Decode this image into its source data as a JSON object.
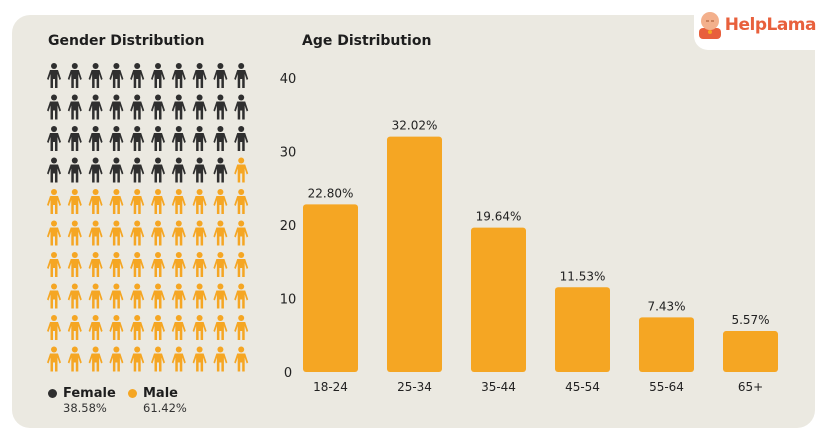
{
  "brand": {
    "name": "HelpLama"
  },
  "gender": {
    "title": "Gender Distribution",
    "total_icons": 100,
    "female_icons": 39,
    "legend": [
      {
        "label": "Female",
        "pct": "38.58%",
        "color": "#2f2f2f"
      },
      {
        "label": "Male",
        "pct": "61.42%",
        "color": "#f5a623"
      }
    ]
  },
  "chart_data": {
    "type": "bar",
    "title": "Age Distribution",
    "categories": [
      "18-24",
      "25-34",
      "35-44",
      "45-54",
      "55-64",
      "65+"
    ],
    "values": [
      22.8,
      32.02,
      19.64,
      11.53,
      7.43,
      5.57
    ],
    "data_labels": [
      "22.80%",
      "32.02%",
      "19.64%",
      "11.53%",
      "7.43%",
      "5.57%"
    ],
    "yticks": [
      0,
      10,
      20,
      30,
      40
    ],
    "ylim": [
      0,
      40
    ],
    "xlabel": "",
    "ylabel": "",
    "bar_color": "#f5a623",
    "grid": false
  }
}
